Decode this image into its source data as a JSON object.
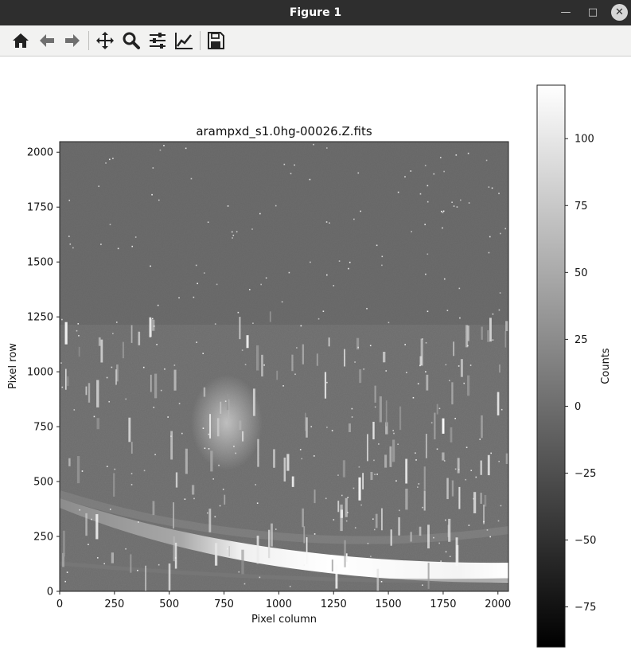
{
  "window": {
    "title": "Figure 1",
    "minimize_icon": "minimize-icon",
    "maximize_icon": "maximize-icon",
    "close_icon": "close-icon"
  },
  "toolbar": {
    "items": [
      {
        "name": "home-icon",
        "tooltip": "Reset original view"
      },
      {
        "name": "back-arrow-icon",
        "tooltip": "Back to previous view"
      },
      {
        "name": "forward-arrow-icon",
        "tooltip": "Forward to next view"
      },
      {
        "name": "pan-icon",
        "tooltip": "Pan axes"
      },
      {
        "name": "zoom-icon",
        "tooltip": "Zoom to rectangle"
      },
      {
        "name": "subplots-icon",
        "tooltip": "Configure subplots"
      },
      {
        "name": "axes-edit-icon",
        "tooltip": "Edit axis, curve and image parameters"
      },
      {
        "name": "save-icon",
        "tooltip": "Save the figure"
      }
    ]
  },
  "plot": {
    "title": "arampxd_s1.0hg-00026.Z.fits",
    "xlabel": "Pixel column",
    "ylabel": "Pixel row",
    "colorbar_label": "Counts"
  },
  "chart_data": {
    "type": "heatmap",
    "title": "arampxd_s1.0hg-00026.Z.fits",
    "xlabel": "Pixel column",
    "ylabel": "Pixel row",
    "xlim": [
      0,
      2048
    ],
    "ylim": [
      0,
      2048
    ],
    "xticks": [
      0,
      250,
      500,
      750,
      1000,
      1250,
      1500,
      1750,
      2000
    ],
    "yticks": [
      0,
      250,
      500,
      750,
      1000,
      1250,
      1500,
      1750,
      2000
    ],
    "colormap": "gray",
    "colorbar": {
      "label": "Counts",
      "range": [
        -90,
        120
      ],
      "ticks": [
        100,
        75,
        50,
        25,
        0,
        -25,
        -50,
        -75
      ]
    },
    "background_level": 0
  }
}
